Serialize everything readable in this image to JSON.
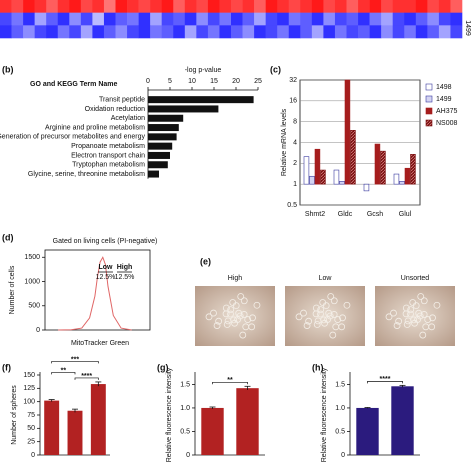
{
  "chart_data": [
    {
      "type": "heatmap",
      "row_labels": [
        "1499"
      ],
      "clim": [
        -1,
        1
      ],
      "values": [
        [
          0.9,
          0.8,
          1,
          0.9,
          0.7,
          0.9,
          1,
          0.8,
          0.9,
          0.6,
          1,
          0.9,
          0.8,
          0.9,
          1,
          0.7,
          0.9,
          0.8,
          1,
          0.9,
          0.8,
          0.9,
          0.7,
          1,
          0.9,
          0.8,
          0.9,
          1,
          0.8,
          0.9,
          0.7,
          0.9,
          1,
          0.8,
          0.9,
          0.9,
          1,
          0.8,
          0.9,
          0.7
        ],
        [
          -0.8,
          -0.6,
          -0.9,
          -0.4,
          -0.7,
          -0.9,
          -0.5,
          -0.8,
          -0.3,
          -0.9,
          -0.7,
          -0.6,
          -0.9,
          -0.4,
          -0.8,
          -0.7,
          -0.9,
          -0.5,
          -0.8,
          -0.6,
          -0.9,
          -0.7,
          -0.4,
          -0.8,
          -0.9,
          -0.6,
          -0.7,
          -0.9,
          -0.5,
          -0.8,
          -0.7,
          -0.9,
          -0.6,
          -0.4,
          -0.8,
          -0.9,
          -0.7,
          -0.5,
          -0.8,
          -0.9
        ],
        [
          -0.9,
          -0.7,
          -0.5,
          -0.8,
          -0.9,
          -0.6,
          -0.8,
          -0.4,
          -0.9,
          -0.7,
          -0.5,
          -0.8,
          -0.9,
          -0.6,
          -0.7,
          -0.9,
          -0.4,
          -0.8,
          -0.6,
          -0.9,
          -0.7,
          -0.5,
          -0.9,
          -0.8,
          -0.6,
          -0.9,
          -0.7,
          -0.4,
          -0.9,
          -0.6,
          -0.8,
          -0.7,
          -0.9,
          -0.5,
          -0.8,
          -0.6,
          -0.9,
          -0.7,
          -0.4,
          -0.8
        ]
      ]
    },
    {
      "type": "hbar",
      "panel_label": "(b)",
      "title": "GO and KEGG Term Name",
      "xlabel": "-log p-value",
      "categories": [
        "Transit peptide",
        "Oxidation reduction",
        "Acetylation",
        "Arginine and proline metabolism",
        "Generation of precursor metabolites and energy",
        "Propanoate metabolism",
        "Electron transport chain",
        "Tryptophan metabolism",
        "Glycine, serine, threonine metabolism"
      ],
      "values": [
        24,
        16,
        8,
        7,
        6.5,
        5.5,
        5,
        4.5,
        2.5
      ],
      "color": "#111111",
      "xlim": [
        0,
        25
      ],
      "xticks": [
        0,
        5,
        10,
        15,
        20,
        25
      ]
    },
    {
      "type": "grouped_bar",
      "panel_label": "(c)",
      "ylabel": "Relative mRNA levels",
      "log_scale": true,
      "categories": [
        "Shmt2",
        "Gldc",
        "Gcsh",
        "Glul"
      ],
      "series": [
        {
          "name": "1498",
          "color": "#ffffff",
          "values": [
            2.5,
            1.6,
            0.8,
            1.4
          ]
        },
        {
          "name": "1499",
          "color": "#d4d4f2",
          "values": [
            1.3,
            1.1,
            1.0,
            1.1
          ]
        },
        {
          "name": "AH375",
          "color": "#a51d1d",
          "values": [
            3.2,
            32,
            3.8,
            1.7
          ]
        },
        {
          "name": "NS008",
          "color": "#7a1010",
          "values": [
            1.6,
            6,
            3,
            2.7
          ]
        }
      ],
      "ylim": [
        0.5,
        32
      ],
      "yticks": [
        0.5,
        1,
        2,
        4,
        8,
        16,
        32
      ]
    },
    {
      "type": "curve",
      "panel_label": "(d)",
      "title": "Gated on living cells (PI-negative)",
      "xlabel": "MitoTracker Green",
      "ylabel": "Number of cells",
      "x": [
        -0.5,
        0,
        0.4,
        0.7,
        0.9,
        1.0,
        1.1,
        1.2,
        1.3,
        1.4,
        1.6,
        1.9,
        2.3
      ],
      "values": [
        0,
        5,
        40,
        250,
        700,
        1100,
        1400,
        1500,
        1350,
        900,
        300,
        40,
        0
      ],
      "color": "#e06666",
      "xlim": [
        -1,
        3
      ],
      "ylim": [
        0,
        1650
      ],
      "yticks": [
        0,
        500,
        1000,
        1500
      ],
      "gates": [
        {
          "label": "Low",
          "percent": "12.5%"
        },
        {
          "label": "High",
          "percent": "12.5%"
        }
      ]
    },
    {
      "type": "images",
      "panel_label": "(e)",
      "labels": [
        "High",
        "Low",
        "Unsorted"
      ]
    },
    {
      "type": "bar",
      "panel_label": "(f)",
      "ylabel": "Number of spheres",
      "values": [
        102,
        83,
        133
      ],
      "errors": [
        2,
        3,
        4
      ],
      "color": "#b22222",
      "ylim": [
        0,
        150
      ],
      "yticks": [
        0,
        25,
        50,
        75,
        100,
        125,
        150
      ],
      "annotations": [
        {
          "from": 0,
          "to": 1,
          "label": "**"
        },
        {
          "from": 0,
          "to": 2,
          "label": "***"
        },
        {
          "from": 1,
          "to": 2,
          "label": "****"
        }
      ]
    },
    {
      "type": "bar",
      "panel_label": "(g)",
      "ylabel": "Relative fluorescence intensity",
      "values": [
        1.0,
        1.42
      ],
      "errors": [
        0.02,
        0.04
      ],
      "color": "#b22222",
      "ylim": [
        0,
        1.7
      ],
      "yticks": [
        0,
        0.5,
        {
          "value": 1,
          "label": "1.0"
        },
        1.5
      ],
      "annotations": [
        {
          "from": 0,
          "to": 1,
          "label": "**"
        }
      ]
    },
    {
      "type": "bar",
      "panel_label": "(h)",
      "ylabel": "Relative fluorescence intensity",
      "values": [
        1.0,
        1.46
      ],
      "errors": [
        0.01,
        0.02
      ],
      "color": "#2b1b7e",
      "ylim": [
        0,
        1.7
      ],
      "yticks": [
        0,
        0.5,
        {
          "value": 1,
          "label": "1.0"
        },
        1.5
      ],
      "annotations": [
        {
          "from": 0,
          "to": 1,
          "label": "****"
        }
      ]
    }
  ]
}
